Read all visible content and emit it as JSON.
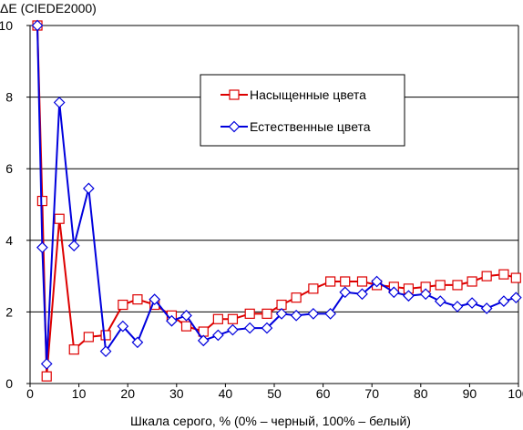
{
  "chart_data": {
    "type": "line",
    "title": "",
    "ylabel": "ΔE (CIEDE2000)",
    "xlabel": "Шкала серого, % (0% – черный, 100% – белый)",
    "xlim": [
      0,
      100
    ],
    "ylim": [
      0,
      10
    ],
    "x_ticks": [
      "0",
      "10",
      "20",
      "30",
      "40",
      "50",
      "60",
      "70",
      "80",
      "90",
      "100"
    ],
    "y_ticks": [
      "0",
      "2",
      "4",
      "6",
      "8",
      "10"
    ],
    "grid": "horizontal",
    "legend_position": "top-right",
    "series": [
      {
        "name": "Насыщенные цвета",
        "color": "#dd0000",
        "marker": "square",
        "x": [
          1.5,
          2.5,
          3.4,
          6.0,
          9.0,
          12.0,
          15.5,
          19.0,
          22.0,
          25.5,
          29.0,
          32.0,
          35.5,
          38.5,
          41.5,
          45.0,
          48.5,
          51.5,
          54.5,
          58.0,
          61.5,
          64.5,
          68.0,
          71.0,
          74.5,
          77.5,
          81.0,
          84.0,
          87.5,
          90.5,
          93.5,
          97.0,
          99.5
        ],
        "y": [
          10.0,
          5.1,
          0.2,
          4.6,
          0.95,
          1.3,
          1.35,
          2.2,
          2.35,
          2.2,
          1.9,
          1.6,
          1.45,
          1.8,
          1.8,
          1.95,
          1.95,
          2.2,
          2.4,
          2.65,
          2.85,
          2.85,
          2.85,
          2.75,
          2.7,
          2.65,
          2.7,
          2.75,
          2.75,
          2.85,
          3.0,
          3.05,
          2.95
        ]
      },
      {
        "name": "Естественные цвета",
        "color": "#0000dd",
        "marker": "diamond",
        "x": [
          1.5,
          2.5,
          3.4,
          6.0,
          9.0,
          12.0,
          15.5,
          19.0,
          22.0,
          25.5,
          29.0,
          32.0,
          35.5,
          38.5,
          41.5,
          45.0,
          48.5,
          51.5,
          54.5,
          58.0,
          61.5,
          64.5,
          68.0,
          71.0,
          74.5,
          77.5,
          81.0,
          84.0,
          87.5,
          90.5,
          93.5,
          97.0,
          99.5
        ],
        "y": [
          10.0,
          3.8,
          0.55,
          7.85,
          3.85,
          5.45,
          0.9,
          1.6,
          1.15,
          2.35,
          1.75,
          1.9,
          1.2,
          1.35,
          1.5,
          1.55,
          1.55,
          1.95,
          1.9,
          1.95,
          1.95,
          2.55,
          2.5,
          2.85,
          2.55,
          2.45,
          2.5,
          2.3,
          2.15,
          2.25,
          2.1,
          2.3,
          2.4
        ]
      }
    ]
  }
}
